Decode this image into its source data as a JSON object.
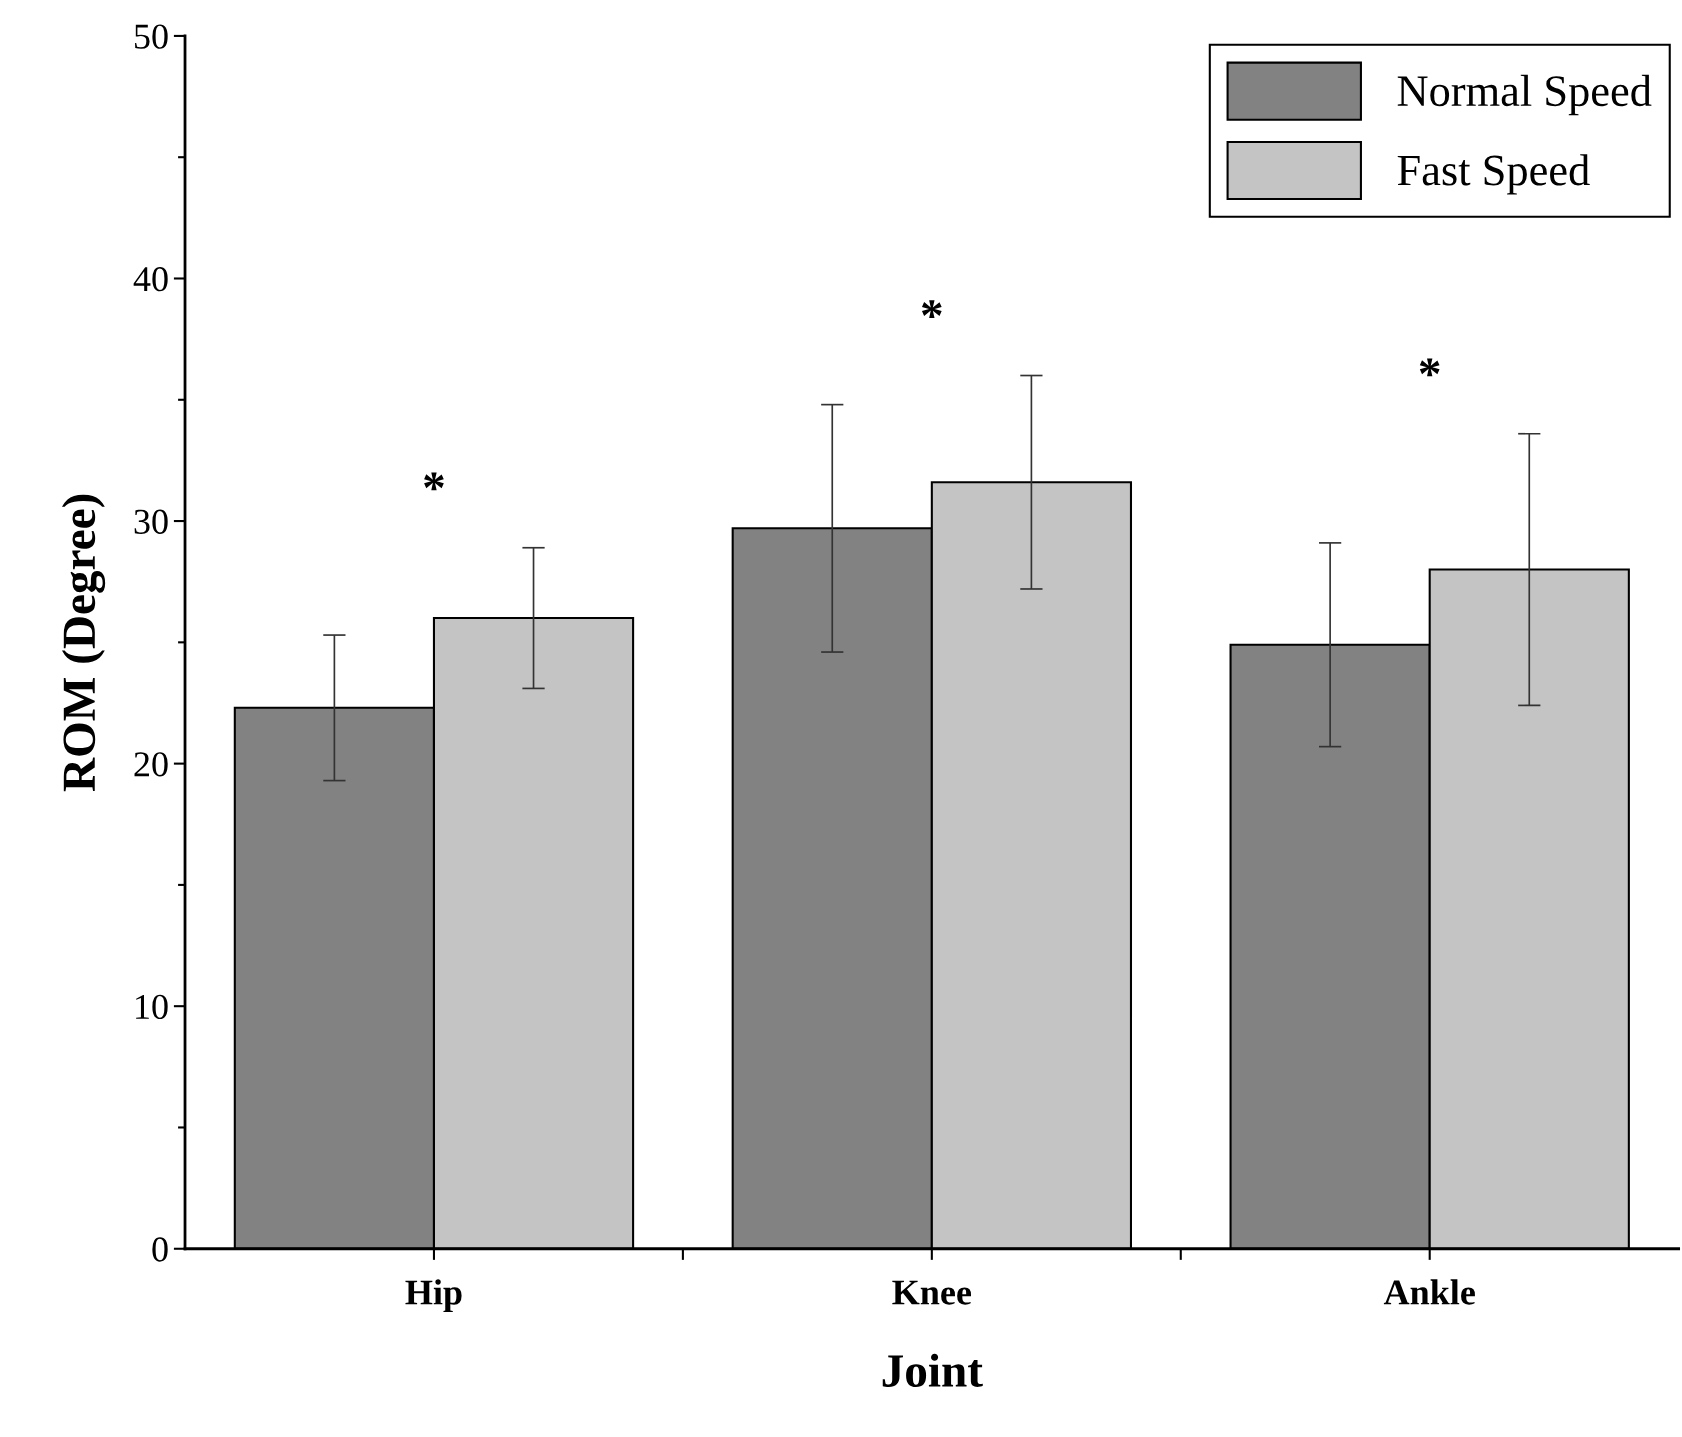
{
  "chart_data": {
    "type": "bar",
    "xlabel": "Joint",
    "ylabel": "ROM (Degree)",
    "categories": [
      "Hip",
      "Knee",
      "Ankle"
    ],
    "series": [
      {
        "name": "Normal Speed",
        "color": "#828282",
        "values": [
          22.3,
          29.7,
          24.9
        ],
        "errors": [
          3.0,
          5.1,
          4.2
        ]
      },
      {
        "name": "Fast Speed",
        "color": "#c4c4c4",
        "values": [
          26.0,
          31.6,
          28.0
        ],
        "errors": [
          2.9,
          4.4,
          5.6
        ]
      }
    ],
    "ylim": [
      0,
      50
    ],
    "yticks": [
      0,
      {
        "value": 5,
        "label": null
      },
      10,
      {
        "value": 15,
        "label": null
      },
      20,
      {
        "value": 25,
        "label": null
      },
      30,
      {
        "value": 35,
        "label": null
      },
      40,
      {
        "value": 45,
        "label": null
      },
      50
    ],
    "annotations": [
      "*",
      "*",
      "*"
    ],
    "legend": "top right",
    "grid": false
  }
}
